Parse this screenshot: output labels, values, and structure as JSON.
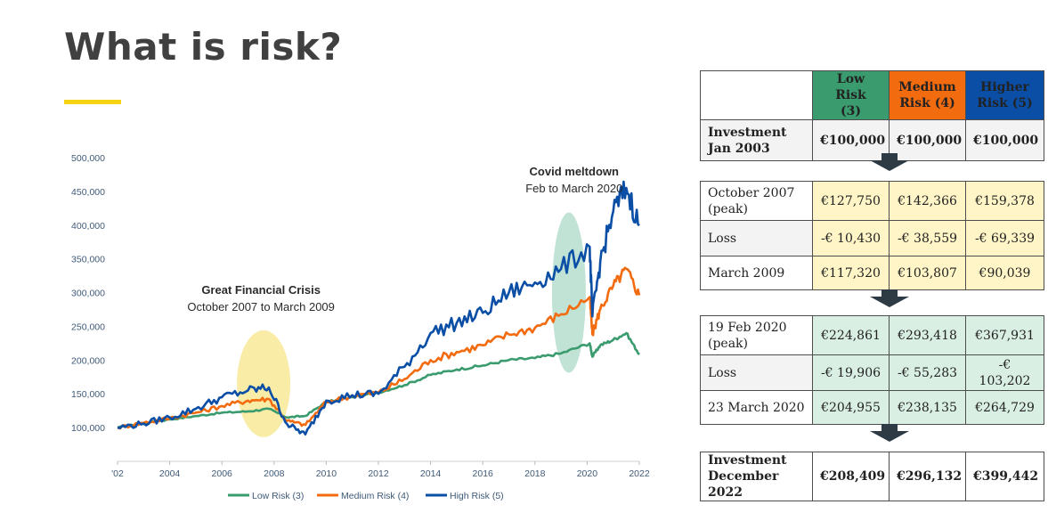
{
  "title": "What is risk?",
  "colors": {
    "low": "#3a9b6e",
    "medium": "#f26b0f",
    "high": "#0a4ea6",
    "accent": "#f5d311"
  },
  "chart_data": {
    "type": "line",
    "x_ticks": [
      "'02",
      "2004",
      "2006",
      "2008",
      "2010",
      "2012",
      "2014",
      "2016",
      "2018",
      "2020",
      "2022"
    ],
    "y_ticks": [
      "100,000",
      "150,000",
      "200,000",
      "250,000",
      "300,000",
      "350,000",
      "400,000",
      "450,000",
      "500,000"
    ],
    "ylim": [
      50000,
      500000
    ],
    "xlim": [
      2002,
      2022
    ],
    "legend_position": "bottom",
    "series": [
      {
        "name": "Low Risk (3)",
        "color": "#3a9b6e",
        "points": [
          [
            2002,
            100000
          ],
          [
            2003,
            107000
          ],
          [
            2004,
            112000
          ],
          [
            2005,
            117000
          ],
          [
            2006,
            122000
          ],
          [
            2007,
            124000
          ],
          [
            2007.8,
            127750
          ],
          [
            2008.5,
            115000
          ],
          [
            2009.2,
            117320
          ],
          [
            2010,
            138000
          ],
          [
            2011,
            145000
          ],
          [
            2012,
            152000
          ],
          [
            2013,
            163000
          ],
          [
            2014,
            178000
          ],
          [
            2015,
            186000
          ],
          [
            2016,
            192000
          ],
          [
            2017,
            200000
          ],
          [
            2018,
            203000
          ],
          [
            2019,
            210000
          ],
          [
            2020.1,
            224861
          ],
          [
            2020.2,
            204955
          ],
          [
            2020.5,
            222000
          ],
          [
            2021,
            230000
          ],
          [
            2021.5,
            240000
          ],
          [
            2022,
            208409
          ]
        ]
      },
      {
        "name": "Medium Risk (4)",
        "color": "#f26b0f",
        "points": [
          [
            2002,
            100000
          ],
          [
            2003,
            107000
          ],
          [
            2004,
            114000
          ],
          [
            2005,
            122000
          ],
          [
            2006,
            132000
          ],
          [
            2007,
            140000
          ],
          [
            2007.8,
            142366
          ],
          [
            2008.5,
            110000
          ],
          [
            2009.2,
            103807
          ],
          [
            2010,
            138000
          ],
          [
            2011,
            147000
          ],
          [
            2012,
            152000
          ],
          [
            2013,
            172000
          ],
          [
            2014,
            200000
          ],
          [
            2015,
            212000
          ],
          [
            2016,
            222000
          ],
          [
            2017,
            238000
          ],
          [
            2018,
            248000
          ],
          [
            2019,
            268000
          ],
          [
            2020.1,
            293418
          ],
          [
            2020.2,
            238135
          ],
          [
            2020.5,
            275000
          ],
          [
            2021,
            310000
          ],
          [
            2021.5,
            335000
          ],
          [
            2022,
            296132
          ]
        ]
      },
      {
        "name": "High Risk (5)",
        "color": "#0a4ea6",
        "points": [
          [
            2002,
            100000
          ],
          [
            2003,
            106000
          ],
          [
            2004,
            115000
          ],
          [
            2005,
            128000
          ],
          [
            2006,
            145000
          ],
          [
            2007,
            155000
          ],
          [
            2007.8,
            159378
          ],
          [
            2008.5,
            105000
          ],
          [
            2009.2,
            90039
          ],
          [
            2010,
            140000
          ],
          [
            2011,
            148000
          ],
          [
            2012,
            150000
          ],
          [
            2013,
            190000
          ],
          [
            2014,
            240000
          ],
          [
            2015,
            255000
          ],
          [
            2016,
            270000
          ],
          [
            2017,
            300000
          ],
          [
            2018,
            315000
          ],
          [
            2019,
            335000
          ],
          [
            2020.1,
            367931
          ],
          [
            2020.2,
            264729
          ],
          [
            2020.5,
            345000
          ],
          [
            2021,
            420000
          ],
          [
            2021.5,
            455000
          ],
          [
            2022,
            399442
          ]
        ]
      }
    ],
    "annotations": [
      {
        "title": "Great Financial Crisis",
        "subtitle": "October 2007 to March 2009",
        "x": 2007.6,
        "y": 165000,
        "color": "#f7e58a"
      },
      {
        "title": "Covid meltdown",
        "subtitle": "Feb to March 2020",
        "x": 2019.3,
        "y": 300000,
        "color": "#9fd4bf"
      }
    ]
  },
  "table": {
    "headers": {
      "low": "Low Risk\n(3)",
      "medium": "Medium\nRisk (4)",
      "high": "Higher\nRisk (5)"
    },
    "investment_start": {
      "label": "Investment\nJan 2003",
      "low": "€100,000",
      "medium": "€100,000",
      "high": "€100,000"
    },
    "gfc": [
      {
        "label": "October 2007\n(peak)",
        "low": "€127,750",
        "medium": "€142,366",
        "high": "€159,378"
      },
      {
        "label": "Loss",
        "low": "-€ 10,430",
        "medium": "-€ 38,559",
        "high": "-€ 69,339"
      },
      {
        "label": "March 2009",
        "low": "€117,320",
        "medium": "€103,807",
        "high": "€90,039"
      }
    ],
    "covid": [
      {
        "label": "19 Feb 2020\n(peak)",
        "low": "€224,861",
        "medium": "€293,418",
        "high": "€367,931"
      },
      {
        "label": "Loss",
        "low": "-€ 19,906",
        "medium": "-€ 55,283",
        "high": "-€ 103,202"
      },
      {
        "label": "23 March 2020",
        "low": "€204,955",
        "medium": "€238,135",
        "high": "€264,729"
      }
    ],
    "investment_end": {
      "label": "Investment\nDecember 2022",
      "low": "€208,409",
      "medium": "€296,132",
      "high": "€399,442"
    }
  }
}
